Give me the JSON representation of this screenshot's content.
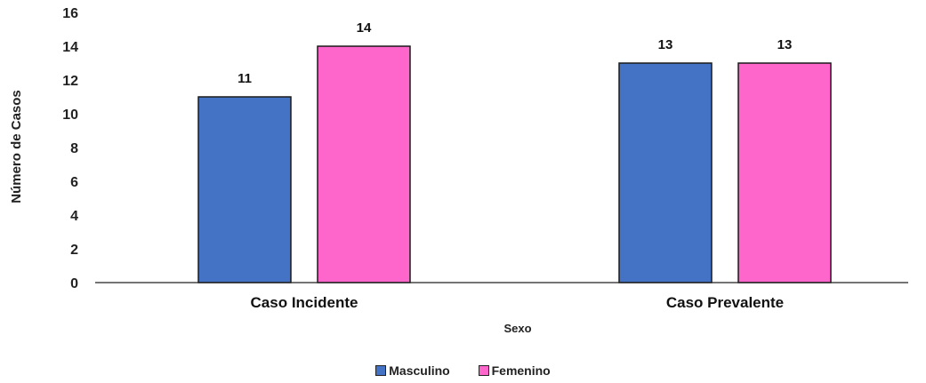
{
  "chart_data": {
    "type": "bar",
    "title": "",
    "xlabel": "Sexo",
    "ylabel": "Número de Casos",
    "categories": [
      "Caso Incidente",
      "Caso Prevalente"
    ],
    "ylim": [
      0,
      16
    ],
    "yticks": [
      0,
      2,
      4,
      6,
      8,
      10,
      12,
      14,
      16
    ],
    "grid": false,
    "legend_position": "bottom",
    "series": [
      {
        "name": "Masculino",
        "color": "#4472C4",
        "values": [
          11,
          13
        ]
      },
      {
        "name": "Femenino",
        "color": "#FF66CC",
        "values": [
          14,
          13
        ]
      }
    ]
  }
}
